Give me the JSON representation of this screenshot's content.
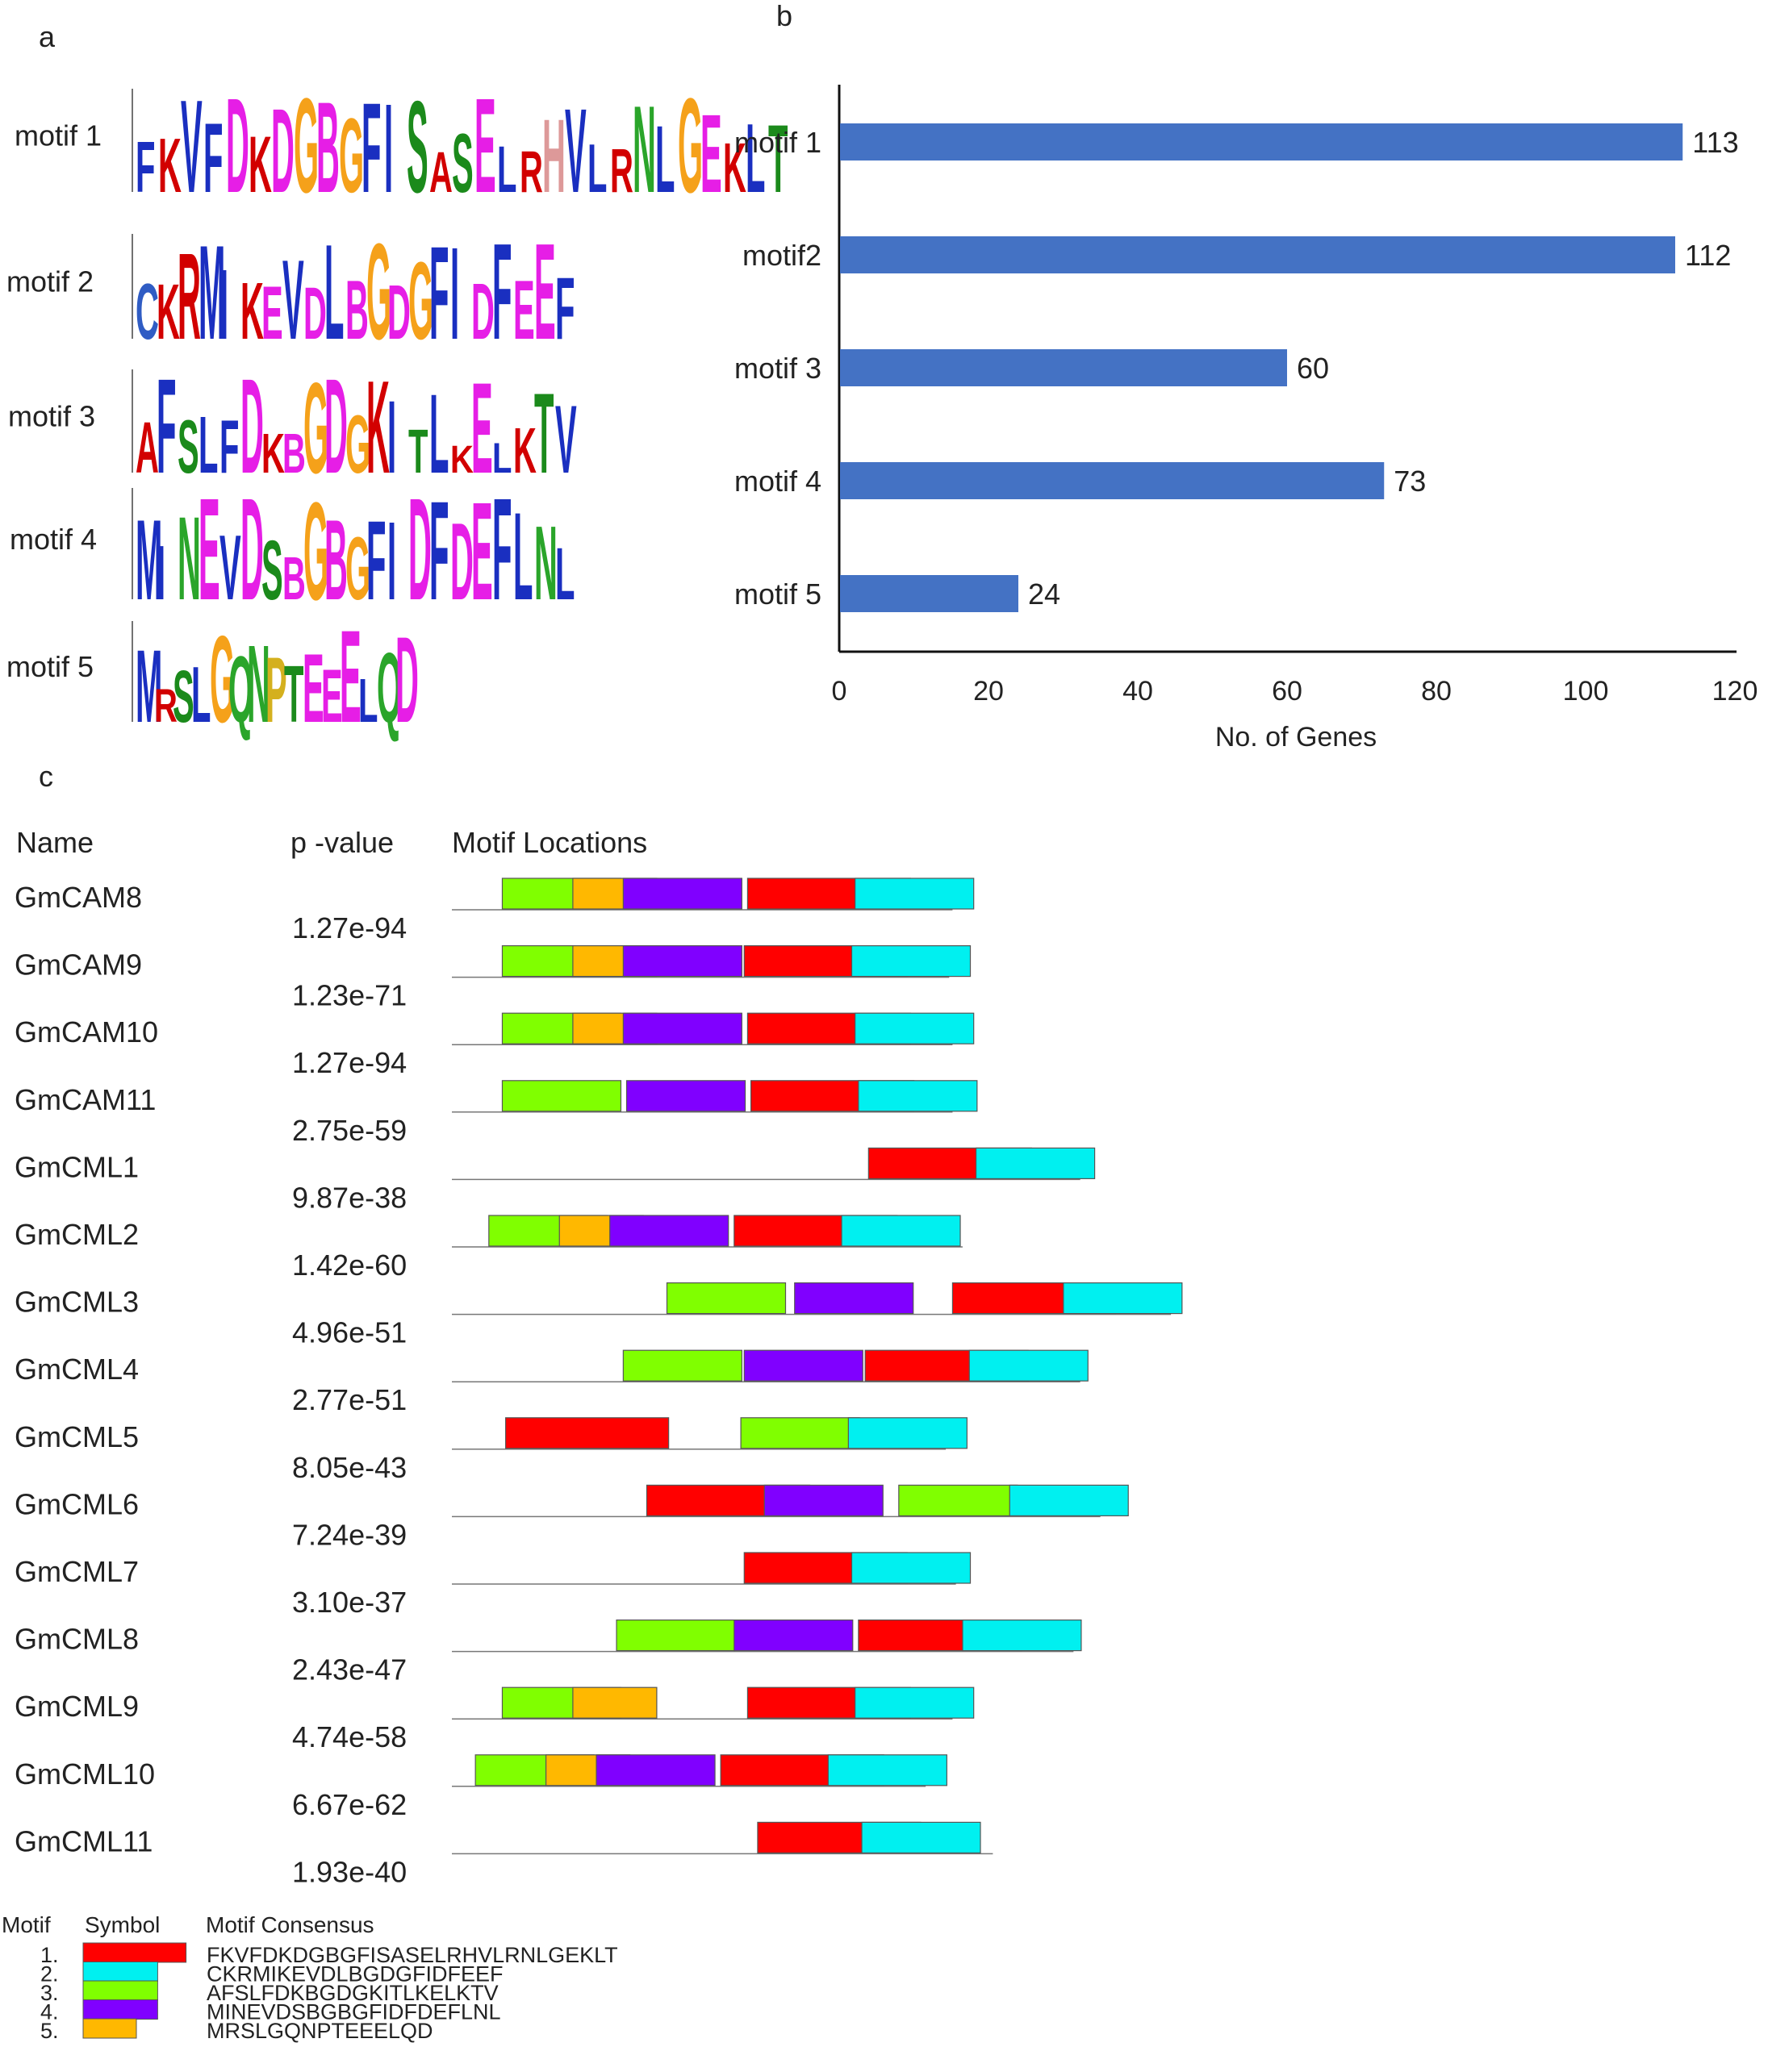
{
  "panel_labels": {
    "a": "a",
    "b": "b",
    "c": "c"
  },
  "panel_a": {
    "motifs": [
      {
        "label": "motif 1",
        "consensus_logo": "FKVFDKDGBGFISASELRHVLRNLGEKLT",
        "length": 29
      },
      {
        "label": "motif 2",
        "consensus_logo": "CKRMIKEVDLBGDGFIDFEEF",
        "length": 21
      },
      {
        "label": "motif 3",
        "consensus_logo": "AFSLFDKBGDGKITLKELKTV",
        "length": 21
      },
      {
        "label": "motif 4",
        "consensus_logo": "MINEVDSBGBGFIDFDEFLNL",
        "length": 21
      },
      {
        "label": "motif 5",
        "consensus_logo": "MRSLGQNPTEEELQD",
        "length": 15
      }
    ],
    "letter_colors": {
      "A": "#d20000",
      "C": "#2f5cc4",
      "D": "#e61ee6",
      "E": "#e61ee6",
      "F": "#1a2fc0",
      "G": "#f5a11a",
      "H": "#dd9999",
      "I": "#1a2fc0",
      "K": "#d20000",
      "L": "#1a2fc0",
      "M": "#1a2fc0",
      "N": "#2aa52a",
      "P": "#d4b01e",
      "Q": "#2aa52a",
      "R": "#d20000",
      "S": "#1b8a1b",
      "T": "#1b8a1b",
      "V": "#1a2fc0",
      "W": "#1a2fc0",
      "Y": "#2aa52a",
      "B": "#e61ee6",
      "X": "#1a2fc0"
    }
  },
  "chart_data": {
    "type": "bar",
    "orientation": "horizontal",
    "categories": [
      "motif 1",
      "motif2",
      "motif 3",
      "motif 4",
      "motif 5"
    ],
    "values": [
      113,
      112,
      60,
      73,
      24
    ],
    "title": "",
    "xlabel": "No. of Genes",
    "ylabel": "",
    "xlim": [
      0,
      120
    ],
    "xticks": [
      0,
      20,
      40,
      60,
      80,
      100,
      120
    ],
    "bar_color": "#4472c4",
    "grid": false
  },
  "panel_c": {
    "headers": {
      "name": "Name",
      "pvalue": "p -value",
      "locations": "Motif Locations"
    },
    "motif_colors": {
      "1": "#ff0000",
      "2": "#00f0f0",
      "3": "#80ff00",
      "4": "#8000ff",
      "5": "#ffb800"
    },
    "genes": [
      {
        "name": "GmCAM8",
        "pvalue": "1.27e-94",
        "length": 149,
        "motifs": [
          [
            3,
            15
          ],
          [
            5,
            36
          ],
          [
            4,
            51
          ],
          [
            1,
            88
          ],
          [
            2,
            120
          ]
        ]
      },
      {
        "name": "GmCAM9",
        "pvalue": "1.23e-71",
        "length": 148,
        "motifs": [
          [
            3,
            15
          ],
          [
            5,
            36
          ],
          [
            4,
            51
          ],
          [
            1,
            87
          ],
          [
            2,
            119
          ]
        ]
      },
      {
        "name": "GmCAM10",
        "pvalue": "1.27e-94",
        "length": 149,
        "motifs": [
          [
            3,
            15
          ],
          [
            5,
            36
          ],
          [
            4,
            51
          ],
          [
            1,
            88
          ],
          [
            2,
            120
          ]
        ]
      },
      {
        "name": "GmCAM11",
        "pvalue": "2.75e-59",
        "length": 149,
        "motifs": [
          [
            3,
            15
          ],
          [
            4,
            52
          ],
          [
            1,
            89
          ],
          [
            2,
            121
          ]
        ]
      },
      {
        "name": "GmCML1",
        "pvalue": "9.87e-38",
        "length": 187,
        "motifs": [
          [
            1,
            124
          ],
          [
            2,
            156
          ]
        ]
      },
      {
        "name": "GmCML2",
        "pvalue": "1.42e-60",
        "length": 152,
        "motifs": [
          [
            3,
            11
          ],
          [
            5,
            32
          ],
          [
            4,
            47
          ],
          [
            1,
            84
          ],
          [
            2,
            116
          ]
        ]
      },
      {
        "name": "GmCML3",
        "pvalue": "4.96e-51",
        "length": 214,
        "motifs": [
          [
            3,
            64
          ],
          [
            4,
            102
          ],
          [
            1,
            149
          ],
          [
            2,
            182
          ]
        ]
      },
      {
        "name": "GmCML4",
        "pvalue": "2.77e-51",
        "length": 187,
        "motifs": [
          [
            3,
            51
          ],
          [
            4,
            87
          ],
          [
            1,
            123
          ],
          [
            2,
            154
          ]
        ]
      },
      {
        "name": "GmCML5",
        "pvalue": "8.05e-43",
        "length": 147,
        "motifs": [
          [
            1,
            16
          ],
          [
            3,
            86
          ],
          [
            2,
            118
          ]
        ]
      },
      {
        "name": "GmCML6",
        "pvalue": "7.24e-39",
        "length": 193,
        "motifs": [
          [
            1,
            58
          ],
          [
            4,
            93
          ],
          [
            3,
            133
          ],
          [
            2,
            166
          ]
        ]
      },
      {
        "name": "GmCML7",
        "pvalue": "3.10e-37",
        "length": 150,
        "motifs": [
          [
            1,
            87
          ],
          [
            2,
            119
          ]
        ]
      },
      {
        "name": "GmCML8",
        "pvalue": "2.43e-47",
        "length": 185,
        "motifs": [
          [
            3,
            49
          ],
          [
            4,
            84
          ],
          [
            1,
            121
          ],
          [
            2,
            152
          ]
        ]
      },
      {
        "name": "GmCML9",
        "pvalue": "4.74e-58",
        "length": 149,
        "motifs": [
          [
            3,
            15
          ],
          [
            5,
            36
          ],
          [
            1,
            88
          ],
          [
            2,
            120
          ]
        ]
      },
      {
        "name": "GmCML10",
        "pvalue": "6.67e-62",
        "length": 141,
        "motifs": [
          [
            3,
            7
          ],
          [
            5,
            28
          ],
          [
            4,
            43
          ],
          [
            1,
            80
          ],
          [
            2,
            112
          ]
        ]
      },
      {
        "name": "GmCML11",
        "pvalue": "1.93e-40",
        "length": 161,
        "motifs": [
          [
            1,
            91
          ],
          [
            2,
            122
          ]
        ]
      }
    ],
    "legend": {
      "headers": {
        "motif": "Motif",
        "symbol": "Symbol",
        "consensus": "Motif Consensus"
      },
      "items": [
        {
          "num": "1.",
          "motif": "1",
          "consensus": "FKVFDKDGBGFISASELRHVLRNLGEKLT",
          "width_sites": 29
        },
        {
          "num": "2.",
          "motif": "2",
          "consensus": "CKRMIKEVDLBGDGFIDFEEF",
          "width_sites": 21
        },
        {
          "num": "3.",
          "motif": "3",
          "consensus": "AFSLFDKBGDGKITLKELKTV",
          "width_sites": 21
        },
        {
          "num": "4.",
          "motif": "4",
          "consensus": "MINEVDSBGBGFIDFDEFLNL",
          "width_sites": 21
        },
        {
          "num": "5.",
          "motif": "5",
          "consensus": "MRSLGQNPTEEELQD",
          "width_sites": 15
        }
      ]
    }
  }
}
